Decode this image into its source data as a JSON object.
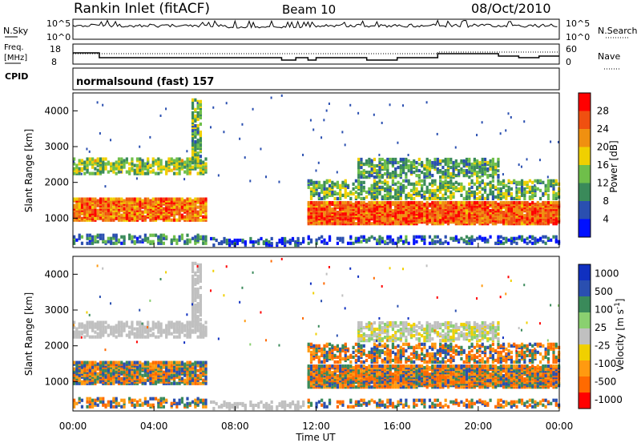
{
  "header": {
    "station": "Rankin Inlet (fitACF)",
    "beam": "Beam 10",
    "date": "08/Oct/2010"
  },
  "status_panels": {
    "nsky_label": "N.Sky",
    "nsky_ticks": [
      "10^5",
      "10^0"
    ],
    "nsearch_label": "N.Search",
    "nsearch_ticks": [
      "10^5",
      "10^0"
    ],
    "freq_label": "Freq.",
    "freq_unit": "[MHz]",
    "freq_ticks": [
      "18",
      "8"
    ],
    "nave_label": "Nave",
    "nave_ticks": [
      "60",
      "0"
    ],
    "cpid_label": "CPID",
    "cpid_value": "normalsound (fast) 157"
  },
  "colors": {
    "power_scale": [
      "#0010ff",
      "#2a4fb0",
      "#3a8a5a",
      "#6fbf4a",
      "#f0d000",
      "#f09010",
      "#f05010",
      "#ff0000"
    ],
    "velocity_scale": [
      "#ff0000",
      "#ff6a00",
      "#ff9a10",
      "#f0d000",
      "#c0c0c0",
      "#8ad070",
      "#3a8a5a",
      "#2a4fb0",
      "#1030c0"
    ]
  },
  "chart_data": [
    {
      "type": "heatmap",
      "quantity": "Power",
      "ylabel": "Slant Range [km]",
      "xlabel": "Time UT",
      "x_ticks": [
        "00:00",
        "04:00",
        "08:00",
        "12:00",
        "16:00",
        "20:00",
        "00:00"
      ],
      "xlim_hours": [
        0,
        24
      ],
      "y_ticks": [
        1000,
        2000,
        3000,
        4000
      ],
      "ylim": [
        180,
        4500
      ],
      "colorbar": {
        "label": "Power [dB]",
        "ticks": [
          4,
          8,
          12,
          16,
          20,
          24,
          28
        ],
        "range": [
          0,
          32
        ]
      }
    },
    {
      "type": "heatmap",
      "quantity": "Velocity",
      "ylabel": "Slant Range [km]",
      "xlabel": "Time UT",
      "x_ticks": [
        "00:00",
        "04:00",
        "08:00",
        "12:00",
        "16:00",
        "20:00",
        "00:00"
      ],
      "xlim_hours": [
        0,
        24
      ],
      "y_ticks": [
        1000,
        2000,
        3000,
        4000
      ],
      "ylim": [
        180,
        4500
      ],
      "colorbar": {
        "label": "Velocity [m s^-1]",
        "ticks": [
          1000,
          500,
          100,
          25,
          -25,
          -100,
          -500,
          -1000
        ]
      }
    }
  ]
}
